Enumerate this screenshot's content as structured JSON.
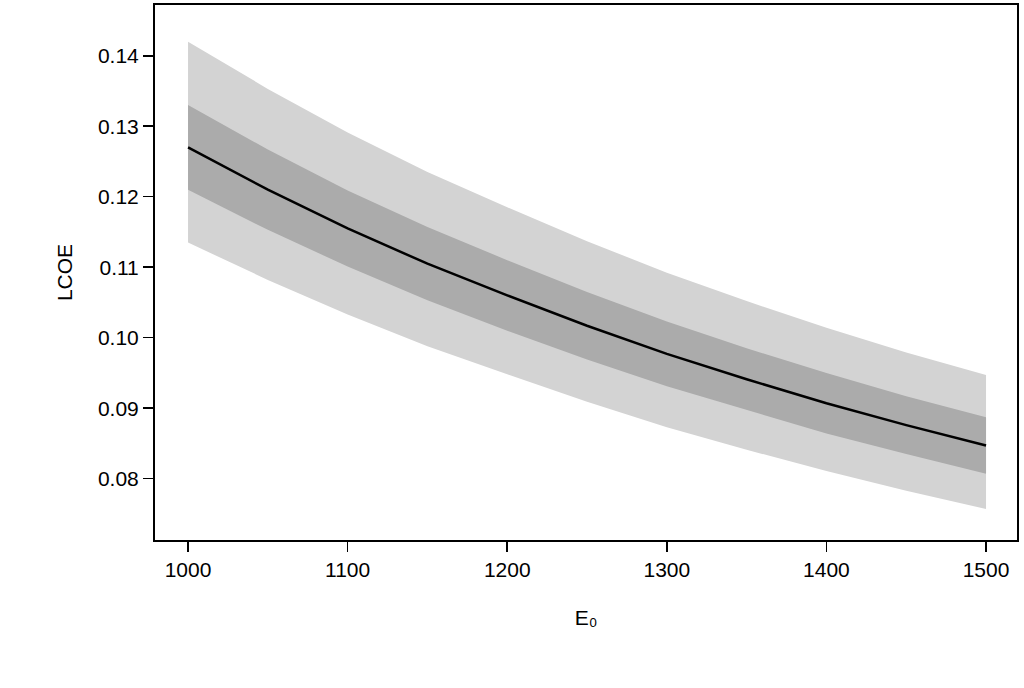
{
  "chart_data": {
    "type": "line",
    "x_label": "E₀",
    "y_label": "LCOE",
    "x": [
      1000,
      1050,
      1100,
      1150,
      1200,
      1250,
      1300,
      1350,
      1400,
      1450,
      1500
    ],
    "series": [
      {
        "color": "#000000",
        "line_style": "solid",
        "values": [
          0.127,
          0.121,
          0.1155,
          0.1105,
          0.106,
          0.1017,
          0.0977,
          0.0941,
          0.0907,
          0.0876,
          0.0847
        ]
      }
    ],
    "bands": [
      {
        "color": "#d3d3d3",
        "lower": [
          0.1135,
          0.1082,
          0.1033,
          0.0988,
          0.0948,
          0.0909,
          0.0873,
          0.0841,
          0.0811,
          0.0783,
          0.0757
        ],
        "upper": [
          0.142,
          0.1353,
          0.1291,
          0.1235,
          0.1185,
          0.1137,
          0.1092,
          0.1052,
          0.1014,
          0.0979,
          0.0947
        ]
      },
      {
        "color": "#ababab",
        "lower": [
          0.121,
          0.1153,
          0.1101,
          0.1053,
          0.101,
          0.0969,
          0.0931,
          0.0897,
          0.0864,
          0.0835,
          0.0807
        ],
        "upper": [
          0.133,
          0.1267,
          0.1209,
          0.1157,
          0.111,
          0.1065,
          0.1023,
          0.0985,
          0.095,
          0.0917,
          0.0887
        ]
      }
    ],
    "xlim": [
      979.3,
      1519.4
    ],
    "ylim": [
      0.0713,
      0.1472
    ],
    "xticks": [
      1000,
      1100,
      1200,
      1300,
      1400,
      1500
    ],
    "yticks": [
      0.08,
      0.09,
      {
        "value": 0.1,
        "label": "0.10"
      },
      0.11,
      0.12,
      0.13,
      0.14
    ],
    "grid": false
  }
}
